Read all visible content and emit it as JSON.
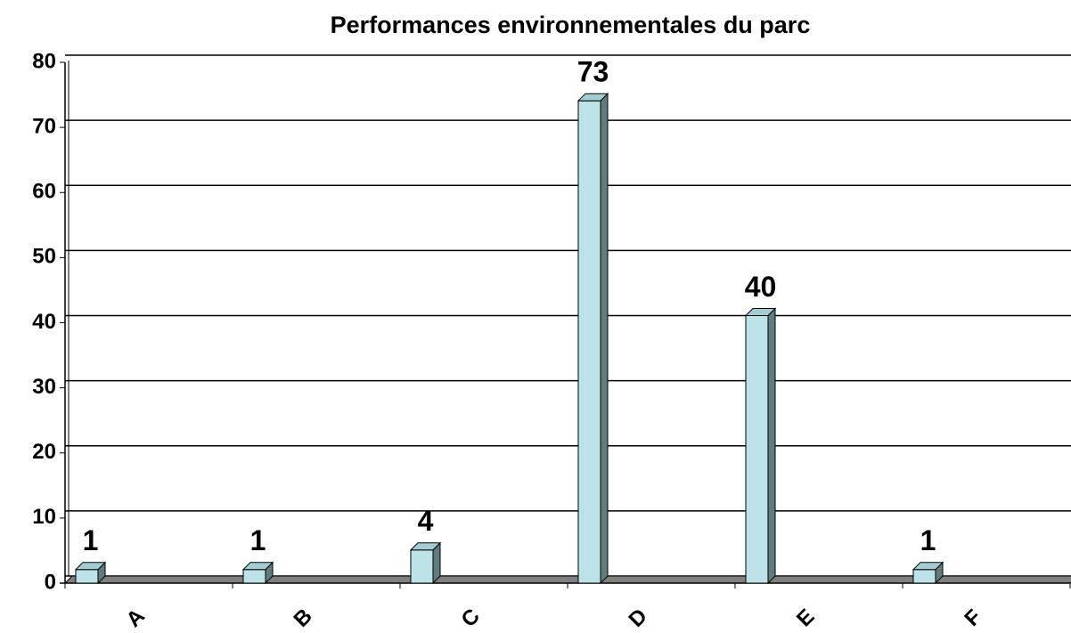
{
  "chart_data": {
    "type": "bar",
    "title": "Performances environnementales du parc",
    "categories": [
      "A",
      "B",
      "C",
      "D",
      "E",
      "F"
    ],
    "values": [
      1,
      1,
      4,
      73,
      40,
      1
    ],
    "color": "#bde3e8",
    "ylim": [
      0,
      80
    ],
    "yticks": [
      0,
      10,
      20,
      30,
      40,
      50,
      60,
      70,
      80
    ],
    "grid": true
  }
}
